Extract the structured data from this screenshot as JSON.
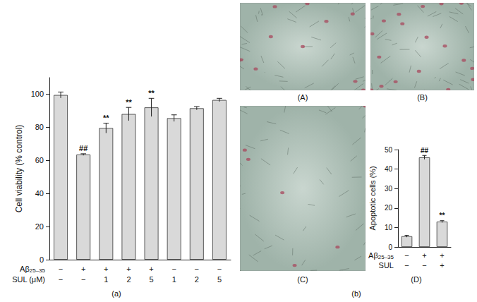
{
  "chart_data": [
    {
      "type": "bar",
      "panel_label": "(a)",
      "ylabel": "Cell viability (% control)",
      "values": [
        99.5,
        63.5,
        79.5,
        88,
        92,
        85.5,
        91.5,
        96.5
      ],
      "errors": [
        1.8,
        0.5,
        3,
        4,
        5.5,
        2,
        1,
        1
      ],
      "annotations": [
        null,
        "##",
        "**",
        "**",
        "**",
        null,
        null,
        null
      ],
      "rows": [
        {
          "label": {
            "main": "Aβ",
            "sub": "25–35"
          },
          "marks": [
            "−",
            "+",
            "+",
            "+",
            "+",
            "−",
            "−",
            "−"
          ]
        },
        {
          "label": {
            "main": "SUL (μM)"
          },
          "marks": [
            "−",
            "−",
            "1",
            "2",
            "5",
            "1",
            "2",
            "5"
          ]
        }
      ],
      "ylim": [
        0,
        110
      ],
      "yticks": [
        0,
        20,
        40,
        60,
        80,
        100
      ],
      "color": "#d9d9d9",
      "grid": false
    },
    {
      "type": "bar",
      "panel_label": "(D)",
      "ylabel": "Apoptotic cells (%)",
      "values": [
        5.5,
        46,
        13
      ],
      "errors": [
        0.5,
        1,
        0.5
      ],
      "annotations": [
        null,
        "##",
        "**"
      ],
      "rows": [
        {
          "label": {
            "main": "Aβ",
            "sub": "25–35"
          },
          "marks": [
            "−",
            "+",
            "+"
          ]
        },
        {
          "label": {
            "main": "SUL"
          },
          "marks": [
            "−",
            "−",
            "+"
          ]
        }
      ],
      "ylim": [
        0,
        50
      ],
      "yticks": [
        0,
        10,
        20,
        30,
        40,
        50
      ],
      "color": "#d9d9d9",
      "grid": false
    }
  ],
  "figure": {
    "micrographs": [
      {
        "label": "(A)"
      },
      {
        "label": "(B)"
      },
      {
        "label": "(C)"
      }
    ],
    "group_label": "(b)"
  }
}
